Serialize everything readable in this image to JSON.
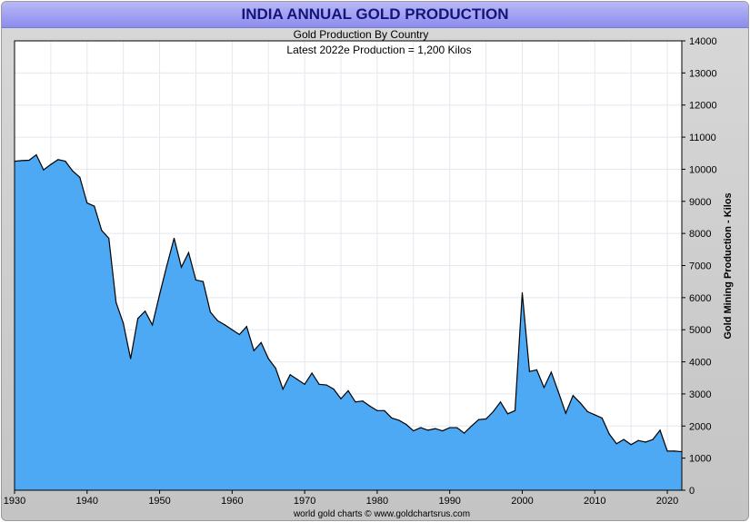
{
  "chart_data": {
    "type": "area",
    "title": "INDIA ANNUAL GOLD PRODUCTION",
    "subtitle": "Gold Production By Country",
    "subtitle2": "Latest 2022e Production = 1,200 Kilos",
    "ylabel": "Gold Mining Production - Kilos",
    "xlabel": "",
    "footer": "world gold charts © www.goldchartsrus.com",
    "xlim": [
      1930,
      2022
    ],
    "ylim": [
      0,
      14000
    ],
    "grid": true,
    "x_ticks": [
      "1930",
      "1940",
      "1950",
      "1960",
      "1970",
      "1980",
      "1990",
      "2000",
      "2010",
      "2020"
    ],
    "y_ticks": [
      "0",
      "1000",
      "2000",
      "3000",
      "4000",
      "5000",
      "6000",
      "7000",
      "8000",
      "9000",
      "10000",
      "11000",
      "12000",
      "13000",
      "14000"
    ],
    "fill_color": "#4da9f3",
    "line_color": "#000000",
    "series": [
      {
        "name": "India",
        "x": [
          1930,
          1931,
          1932,
          1933,
          1934,
          1935,
          1936,
          1937,
          1938,
          1939,
          1940,
          1941,
          1942,
          1943,
          1944,
          1945,
          1946,
          1947,
          1948,
          1949,
          1950,
          1951,
          1952,
          1953,
          1954,
          1955,
          1956,
          1957,
          1958,
          1959,
          1960,
          1961,
          1962,
          1963,
          1964,
          1965,
          1966,
          1967,
          1968,
          1969,
          1970,
          1971,
          1972,
          1973,
          1974,
          1975,
          1976,
          1977,
          1978,
          1979,
          1980,
          1981,
          1982,
          1983,
          1984,
          1985,
          1986,
          1987,
          1988,
          1989,
          1990,
          1991,
          1992,
          1993,
          1994,
          1995,
          1996,
          1997,
          1998,
          1999,
          2000,
          2001,
          2002,
          2003,
          2004,
          2005,
          2006,
          2007,
          2008,
          2009,
          2010,
          2011,
          2012,
          2013,
          2014,
          2015,
          2016,
          2017,
          2018,
          2019,
          2020,
          2021,
          2022
        ],
        "values": [
          10250,
          10270,
          10280,
          10450,
          9980,
          10150,
          10300,
          10250,
          9950,
          9750,
          8950,
          8850,
          8100,
          7850,
          5850,
          5200,
          4100,
          5350,
          5580,
          5150,
          6100,
          7000,
          7850,
          6950,
          7400,
          6550,
          6500,
          5550,
          5280,
          5150,
          5000,
          4850,
          5100,
          4350,
          4600,
          4100,
          3800,
          3150,
          3600,
          3450,
          3300,
          3650,
          3300,
          3280,
          3150,
          2850,
          3100,
          2750,
          2780,
          2620,
          2480,
          2480,
          2250,
          2180,
          2050,
          1850,
          1950,
          1870,
          1920,
          1850,
          1950,
          1950,
          1780,
          2000,
          2200,
          2220,
          2450,
          2750,
          2380,
          2480,
          6150,
          3700,
          3750,
          3200,
          3680,
          3050,
          2400,
          2950,
          2720,
          2450,
          2350,
          2250,
          1750,
          1450,
          1580,
          1420,
          1550,
          1500,
          1580,
          1870,
          1220,
          1220,
          1200
        ]
      }
    ]
  }
}
